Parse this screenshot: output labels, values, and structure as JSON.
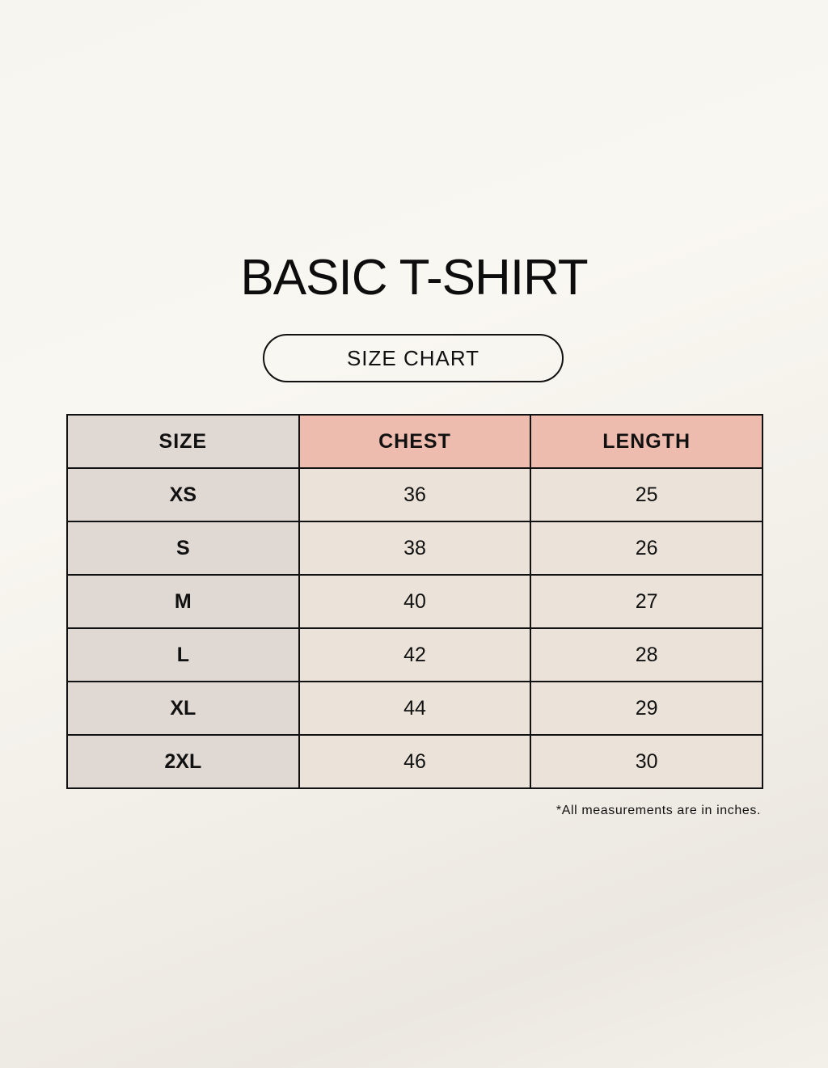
{
  "title": "BASIC T-SHIRT",
  "subtitle": "SIZE CHART",
  "colors": {
    "header_size": "#e0d8d2",
    "header_measure": "#edbcae",
    "size_cell": "#e0d8d2",
    "value_cell": "#ebe3d9"
  },
  "table": {
    "headers": [
      "SIZE",
      "CHEST",
      "LENGTH"
    ],
    "rows": [
      [
        "XS",
        "36",
        "25"
      ],
      [
        "S",
        "38",
        "26"
      ],
      [
        "M",
        "40",
        "27"
      ],
      [
        "L",
        "42",
        "28"
      ],
      [
        "XL",
        "44",
        "29"
      ],
      [
        "2XL",
        "46",
        "30"
      ]
    ]
  },
  "note": "*All measurements are in inches."
}
